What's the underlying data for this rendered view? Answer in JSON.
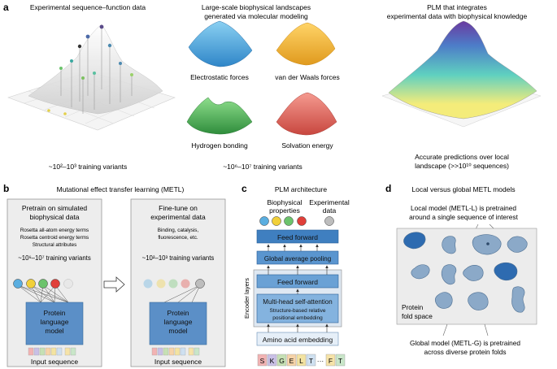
{
  "panel_a": {
    "letter": "a",
    "exp_title": "Experimental sequence–function data",
    "exp_caption": "~10²–10³ training variants",
    "bio_title_1": "Large-scale biophysical landscapes",
    "bio_title_2": "generated via molecular modeling",
    "landscapes": [
      "Electrostatic forces",
      "van der Waals forces",
      "Hydrogen bonding",
      "Solvation energy"
    ],
    "bio_caption": "~10⁶–10⁷ training variants",
    "plm_title_1": "PLM that integrates",
    "plm_title_2": "experimental data with biophysical knowledge",
    "plm_caption_1": "Accurate predictions over local",
    "plm_caption_2": "landscape (>>10¹⁰ sequences)",
    "colors": {
      "electrostatic": "#5aaee0",
      "vdw": "#f1b93a",
      "hbond": "#5cb865",
      "solvation": "#e86a63"
    }
  },
  "panel_b": {
    "letter": "b",
    "title": "Mutational effect transfer learning (METL)",
    "pretrain_title_1": "Pretrain on simulated",
    "pretrain_title_2": "biophysical data",
    "pretrain_items": [
      "Rosetta all-atom energy terms",
      "Rosetta centroid energy terms",
      "Structural attributes"
    ],
    "pretrain_count": "~10⁶–10⁷ training variants",
    "finetune_title_1": "Fine-tune on",
    "finetune_title_2": "experimental data",
    "finetune_items_1": "Binding, catalysis,",
    "finetune_items_2": "fluorescence, etc.",
    "finetune_count": "~10²–10³ training variants",
    "model_label": [
      "Protein",
      "language",
      "model"
    ],
    "input_label": "Input sequence"
  },
  "panel_c": {
    "letter": "c",
    "title": "PLM architecture",
    "biophysical_label_1": "Biophysical",
    "biophysical_label_2": "properties",
    "experimental_label_1": "Experimental",
    "experimental_label_2": "data",
    "feed_forward_top": "Feed forward",
    "pooling": "Global average pooling",
    "encoder_label": "Encoder layers",
    "feed_forward": "Feed forward",
    "attention_1": "Multi-head self-attention",
    "attention_2": "Structure-based relative",
    "attention_3": "positional embedding",
    "embedding": "Amino acid embedding",
    "tokens": [
      "S",
      "K",
      "G",
      "E",
      "L",
      "T",
      "···",
      "F",
      "T"
    ],
    "token_colors": [
      "#f2b3b3",
      "#c9c0e6",
      "#c6e0b4",
      "#f6d3a8",
      "#f3e3a1",
      "#cfe0f0",
      "",
      "#f6e3a8",
      "#c9e6c9"
    ]
  },
  "panel_d": {
    "letter": "d",
    "title": "Local versus global METL models",
    "local_1": "Local model (METL-L) is pretrained",
    "local_2": "around a single sequence of interest",
    "fold_space_1": "Protein",
    "fold_space_2": "fold space",
    "global_1": "Global model (METL-G) is pretrained",
    "global_2": "across diverse protein folds"
  }
}
